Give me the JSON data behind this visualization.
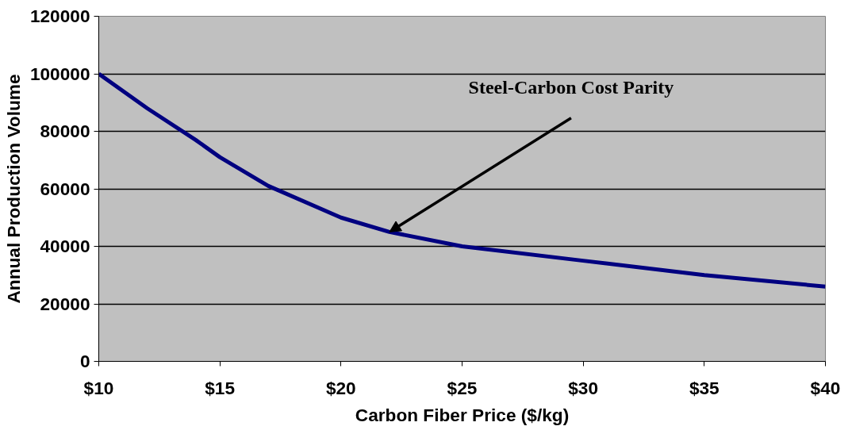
{
  "chart_data": {
    "type": "line",
    "xlabel": "Carbon Fiber Price ($/kg)",
    "ylabel": "Annual Production Volume",
    "x": [
      10,
      12,
      14,
      15,
      17,
      20,
      22,
      25,
      30,
      35,
      40
    ],
    "series": [
      {
        "color": "#000080",
        "values": [
          100000,
          88000,
          77000,
          71000,
          61000,
          50000,
          45000,
          40000,
          35000,
          30000,
          26000
        ]
      }
    ],
    "xlim": [
      10,
      40
    ],
    "ylim": [
      0,
      120000
    ],
    "xticks": [
      {
        "value": 10,
        "label": "$10"
      },
      {
        "value": 15,
        "label": "$15"
      },
      {
        "value": 20,
        "label": "$20"
      },
      {
        "value": 25,
        "label": "$25"
      },
      {
        "value": 30,
        "label": "$30"
      },
      {
        "value": 35,
        "label": "$35"
      },
      {
        "value": 40,
        "label": "$40"
      }
    ],
    "yticks": [
      0,
      20000,
      40000,
      60000,
      80000,
      100000,
      120000
    ],
    "grid": "y",
    "marker": "none",
    "line_style": "solid",
    "annotations": [
      {
        "text": "Steel-Carbon Cost Parity",
        "x": 22,
        "y": 45000
      }
    ]
  }
}
